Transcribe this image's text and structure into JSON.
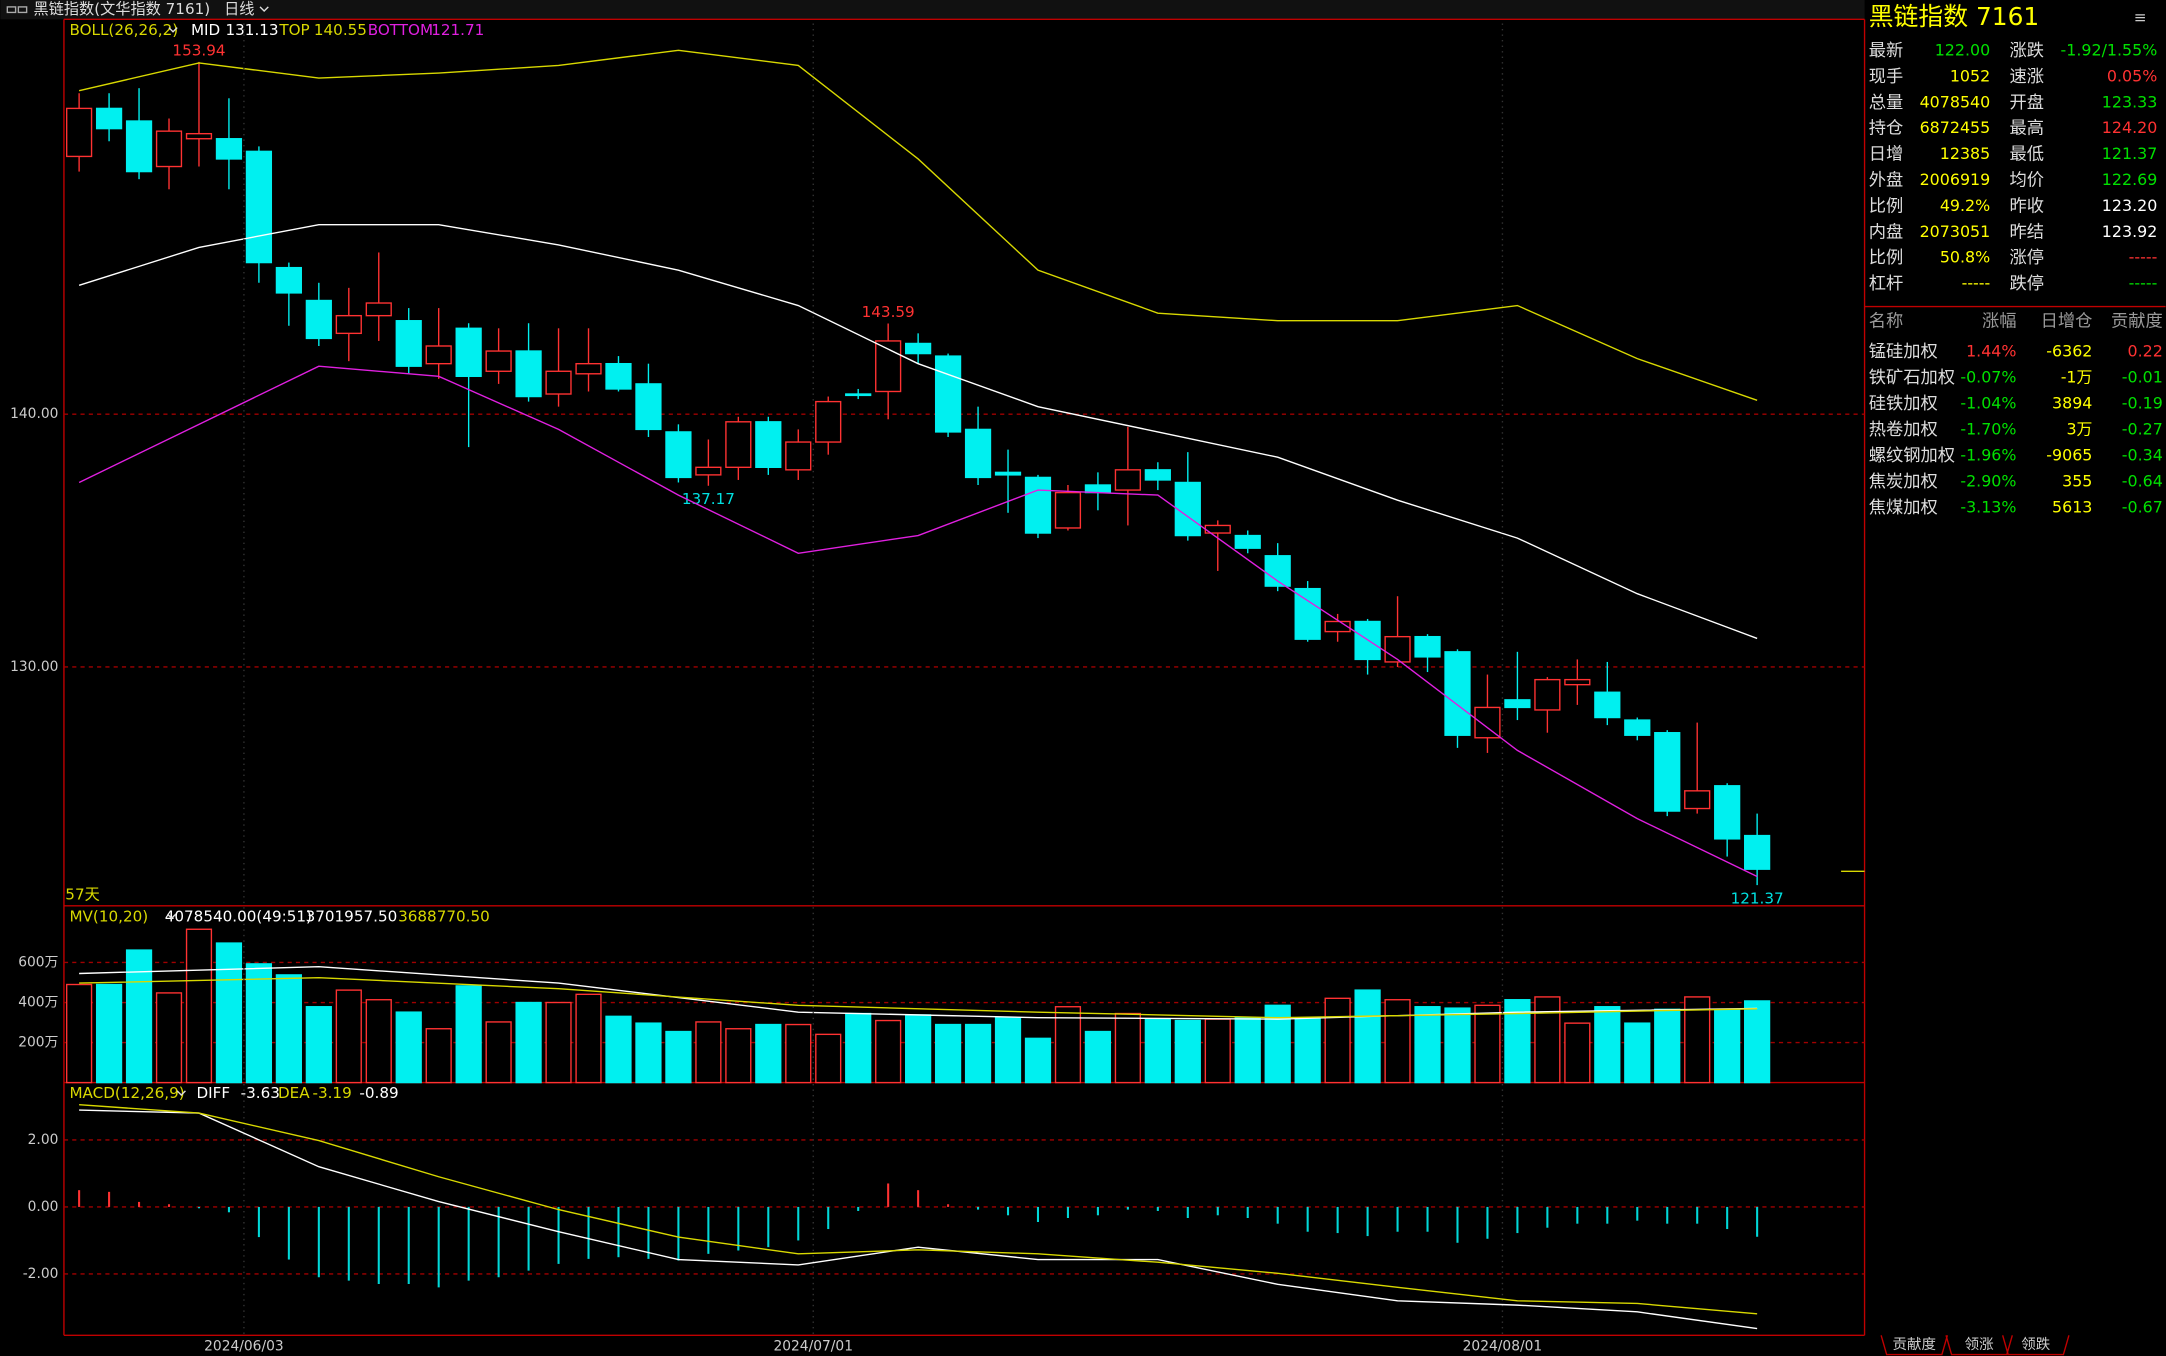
{
  "window_title": "黑链指数(文华指数 7161)",
  "period": "日线",
  "count_label": "57天",
  "chart_data": [
    {
      "type": "candlestick",
      "title": "BOLL(26,26,2)",
      "up_color": "#ff3232",
      "down_color": "#00f0f0",
      "open": [
        150.2,
        152.1,
        151.6,
        149.8,
        150.9,
        150.9,
        150.4,
        145.8,
        144.5,
        143.2,
        143.9,
        143.7,
        142.0,
        143.4,
        141.7,
        142.5,
        140.8,
        141.6,
        142.0,
        141.2,
        139.3,
        137.6,
        137.9,
        139.7,
        137.8,
        138.9,
        140.8,
        140.9,
        142.8,
        142.3,
        139.4,
        137.7,
        137.5,
        135.5,
        137.2,
        137.0,
        137.8,
        137.3,
        135.3,
        135.2,
        134.4,
        133.1,
        131.4,
        131.8,
        130.2,
        131.2,
        130.6,
        127.2,
        128.7,
        128.3,
        129.3,
        129.0,
        127.9,
        127.4,
        124.4,
        125.3,
        123.33
      ],
      "high": [
        152.7,
        152.7,
        152.9,
        151.7,
        153.94,
        152.5,
        150.6,
        146.0,
        145.2,
        145.0,
        146.4,
        144.2,
        144.2,
        143.6,
        143.4,
        143.6,
        143.4,
        143.4,
        142.3,
        142.0,
        139.6,
        139.0,
        139.9,
        139.9,
        139.4,
        140.7,
        141.0,
        143.59,
        143.2,
        142.4,
        140.3,
        138.6,
        137.6,
        137.2,
        137.7,
        139.5,
        138.1,
        138.5,
        135.8,
        135.4,
        134.9,
        133.4,
        132.1,
        131.9,
        132.8,
        131.3,
        130.7,
        129.7,
        130.6,
        129.6,
        130.3,
        130.2,
        128.0,
        127.5,
        127.8,
        125.4,
        124.2
      ],
      "low": [
        149.6,
        150.8,
        149.3,
        148.9,
        149.8,
        148.9,
        145.2,
        143.5,
        142.7,
        142.1,
        142.9,
        141.6,
        141.4,
        138.7,
        141.2,
        140.5,
        140.3,
        140.9,
        140.9,
        139.1,
        137.3,
        137.17,
        137.4,
        137.6,
        137.4,
        138.4,
        140.6,
        139.8,
        142.0,
        139.1,
        137.2,
        136.1,
        135.1,
        135.4,
        136.2,
        135.6,
        137.0,
        135.0,
        133.8,
        134.5,
        133.0,
        131.0,
        131.0,
        129.7,
        130.0,
        129.8,
        126.8,
        126.6,
        127.9,
        127.4,
        128.5,
        127.7,
        127.1,
        124.1,
        124.2,
        122.5,
        121.37
      ],
      "close": [
        152.1,
        151.3,
        149.6,
        151.2,
        151.1,
        150.1,
        146.0,
        144.8,
        143.0,
        143.9,
        144.4,
        141.9,
        142.7,
        141.5,
        142.5,
        140.7,
        141.7,
        142.0,
        141.0,
        139.4,
        137.5,
        137.9,
        139.7,
        137.9,
        138.9,
        140.5,
        140.8,
        142.9,
        142.4,
        139.3,
        137.5,
        137.6,
        135.3,
        136.9,
        136.9,
        137.8,
        137.4,
        135.2,
        135.6,
        134.7,
        133.2,
        131.1,
        131.8,
        130.3,
        131.2,
        130.4,
        127.3,
        128.4,
        128.4,
        129.5,
        129.5,
        128.0,
        127.3,
        124.3,
        125.1,
        123.2,
        122.0
      ],
      "ylim": [
        120.55,
        155.46
      ],
      "yticks": [
        {
          "value": 140,
          "label": "140.00"
        },
        {
          "value": 130,
          "label": "130.00"
        }
      ],
      "series": [
        {
          "name": "MID",
          "color": "#ffffff",
          "x": [
            0,
            4,
            8,
            12,
            16,
            20,
            24,
            28,
            32,
            36,
            40,
            44,
            48,
            52,
            56
          ],
          "values": [
            145.1,
            146.6,
            147.5,
            147.5,
            146.7,
            145.7,
            144.3,
            142.0,
            140.3,
            139.3,
            138.3,
            136.6,
            135.1,
            132.9,
            131.13
          ]
        },
        {
          "name": "TOP",
          "color": "#d8d800",
          "x": [
            0,
            4,
            8,
            12,
            16,
            20,
            24,
            28,
            32,
            36,
            40,
            44,
            48,
            52,
            56
          ],
          "values": [
            152.8,
            153.9,
            153.3,
            153.5,
            153.8,
            154.4,
            153.8,
            150.1,
            145.7,
            144.0,
            143.7,
            143.7,
            144.3,
            142.2,
            140.55
          ]
        },
        {
          "name": "BOTTOM",
          "color": "#e020e0",
          "x": [
            0,
            4,
            8,
            12,
            16,
            20,
            24,
            28,
            32,
            36,
            40,
            44,
            48,
            52,
            56
          ],
          "values": [
            137.3,
            139.6,
            141.9,
            141.5,
            139.4,
            136.8,
            134.5,
            135.2,
            137.0,
            136.8,
            133.4,
            130.3,
            126.7,
            124.0,
            121.71
          ]
        }
      ],
      "annotations": [
        {
          "x": 4,
          "value": 153.94,
          "color": "#ff3232",
          "side": "high"
        },
        {
          "x": 21,
          "value": 137.17,
          "color": "#00e0e0",
          "side": "low"
        },
        {
          "x": 27,
          "value": 143.59,
          "color": "#ff3232",
          "side": "high"
        },
        {
          "x": 56,
          "value": 121.37,
          "color": "#00e0e0",
          "side": "low"
        }
      ]
    },
    {
      "type": "bar",
      "title": "MV(10,20)",
      "subtitle": "4078540.00(49:51)",
      "values": [
        4900000,
        4900000,
        6620000,
        4480000,
        7660000,
        6970000,
        5930000,
        5380000,
        3790000,
        4620000,
        4140000,
        3520000,
        2690000,
        4830000,
        3030000,
        4000000,
        4000000,
        4410000,
        3310000,
        2970000,
        2550000,
        3030000,
        2690000,
        2900000,
        2900000,
        2410000,
        3450000,
        3100000,
        3380000,
        2900000,
        2900000,
        3240000,
        2210000,
        3790000,
        2550000,
        3450000,
        3170000,
        3100000,
        3170000,
        3240000,
        3860000,
        3240000,
        4210000,
        4620000,
        4140000,
        3790000,
        3720000,
        3860000,
        4140000,
        4280000,
        2970000,
        3790000,
        2970000,
        3660000,
        4280000,
        3660000,
        4078540
      ],
      "ylim": [
        0,
        8830000
      ],
      "yticks": [
        {
          "value": 2000000,
          "label": "200万"
        },
        {
          "value": 4000000,
          "label": "400万"
        },
        {
          "value": 6000000,
          "label": "600万"
        }
      ],
      "series": [
        {
          "name": "MV10",
          "color": "#ffffff",
          "x": [
            0,
            8,
            16,
            24,
            32,
            40,
            48,
            56
          ],
          "values": [
            5450000,
            5790000,
            4970000,
            3520000,
            3240000,
            3170000,
            3520000,
            3701957.5
          ],
          "value_label": "3701957.50"
        },
        {
          "name": "MV20",
          "color": "#d8d800",
          "x": [
            0,
            8,
            16,
            24,
            32,
            40,
            48,
            56
          ],
          "values": [
            4970000,
            5240000,
            4690000,
            3860000,
            3520000,
            3240000,
            3450000,
            3688770.5
          ],
          "value_label": "3688770.50"
        }
      ]
    },
    {
      "type": "bar",
      "title": "MACD(12,26,9)",
      "categories": [
        null,
        null,
        null,
        null,
        null,
        "2024/06/03",
        null,
        null,
        null,
        null,
        null,
        null,
        null,
        null,
        null,
        null,
        null,
        null,
        null,
        null,
        null,
        null,
        null,
        null,
        "2024/07/01",
        null,
        null,
        null,
        null,
        null,
        null,
        null,
        null,
        null,
        null,
        null,
        null,
        null,
        null,
        null,
        null,
        null,
        null,
        null,
        null,
        null,
        null,
        "2024/08/01",
        null,
        null,
        null,
        null,
        null,
        null,
        null,
        null,
        null
      ],
      "values": [
        0.5,
        0.45,
        0.15,
        0.08,
        -0.04,
        -0.16,
        -0.9,
        -1.57,
        -2.1,
        -2.2,
        -2.3,
        -2.3,
        -2.4,
        -2.2,
        -2.1,
        -1.9,
        -1.7,
        -1.55,
        -1.5,
        -1.55,
        -1.6,
        -1.4,
        -1.3,
        -1.2,
        -1.0,
        -0.66,
        -0.12,
        0.7,
        0.5,
        0.08,
        -0.08,
        -0.25,
        -0.45,
        -0.33,
        -0.25,
        -0.08,
        -0.12,
        -0.33,
        -0.25,
        -0.33,
        -0.5,
        -0.74,
        -0.78,
        -0.87,
        -0.74,
        -0.74,
        -1.07,
        -0.95,
        -0.78,
        -0.62,
        -0.5,
        -0.5,
        -0.41,
        -0.5,
        -0.5,
        -0.66,
        -0.89
      ],
      "up_color": "#ff3232",
      "down_color": "#00d8d8",
      "ylim": [
        -3.83,
        3.71
      ],
      "yticks": [
        {
          "value": 2,
          "label": "2.00"
        },
        {
          "value": 0,
          "label": "0.00"
        },
        {
          "value": -2,
          "label": "-2.00"
        }
      ],
      "series": [
        {
          "name": "DIFF",
          "color": "#ffffff",
          "x": [
            0,
            4,
            8,
            12,
            16,
            20,
            24,
            28,
            32,
            36,
            40,
            44,
            48,
            52,
            56
          ],
          "values": [
            2.89,
            2.8,
            1.2,
            0.16,
            -0.74,
            -1.57,
            -1.73,
            -1.2,
            -1.57,
            -1.57,
            -2.31,
            -2.8,
            -2.93,
            -3.13,
            -3.63
          ]
        },
        {
          "name": "DEA",
          "color": "#d8d800",
          "x": [
            0,
            4,
            8,
            12,
            16,
            20,
            24,
            28,
            32,
            36,
            40,
            44,
            48,
            52,
            56
          ],
          "values": [
            3.05,
            2.8,
            1.98,
            0.9,
            -0.08,
            -0.9,
            -1.4,
            -1.28,
            -1.4,
            -1.65,
            -1.98,
            -2.4,
            -2.8,
            -2.88,
            -3.19
          ]
        }
      ]
    }
  ],
  "quote_panel": {
    "title": "黑链指数  7161",
    "rows": [
      [
        {
          "label": "最新",
          "value": "122.00",
          "color": "#00e000"
        },
        {
          "label": "涨跌",
          "value": "-1.92/1.55%",
          "color": "#00e000"
        }
      ],
      [
        {
          "label": "现手",
          "value": "1052",
          "color": "#ffff00"
        },
        {
          "label": "速涨",
          "value": "0.05%",
          "color": "#ff3232"
        }
      ],
      [
        {
          "label": "总量",
          "value": "4078540",
          "color": "#ffff00"
        },
        {
          "label": "开盘",
          "value": "123.33",
          "color": "#00e000"
        }
      ],
      [
        {
          "label": "持仓",
          "value": "6872455",
          "color": "#ffff00"
        },
        {
          "label": "最高",
          "value": "124.20",
          "color": "#ff3232"
        }
      ],
      [
        {
          "label": "日增",
          "value": "12385",
          "color": "#ffff00"
        },
        {
          "label": "最低",
          "value": "121.37",
          "color": "#00e000"
        }
      ],
      [
        {
          "label": "外盘",
          "value": "2006919",
          "color": "#ffff00"
        },
        {
          "label": "均价",
          "value": "122.69",
          "color": "#00e000"
        }
      ],
      [
        {
          "label": "比例",
          "value": "49.2%",
          "color": "#ffff00"
        },
        {
          "label": "昨收",
          "value": "123.20",
          "color": "#ffffff"
        }
      ],
      [
        {
          "label": "内盘",
          "value": "2073051",
          "color": "#ffff00"
        },
        {
          "label": "昨结",
          "value": "123.92",
          "color": "#ffffff"
        }
      ],
      [
        {
          "label": "比例",
          "value": "50.8%",
          "color": "#ffff00"
        },
        {
          "label": "涨停",
          "value": "-----",
          "color": "#ff3232"
        }
      ],
      [
        {
          "label": "杠杆",
          "value": "-----",
          "color": "#ffff00"
        },
        {
          "label": "跌停",
          "value": "-----",
          "color": "#00e000"
        }
      ]
    ]
  },
  "components": {
    "header": [
      "名称",
      "涨幅",
      "日增仓",
      "贡献度"
    ],
    "rows": [
      {
        "cells": [
          "锰硅加权",
          "1.44%",
          "-6362",
          "0.22"
        ],
        "color": "#ff3232"
      },
      {
        "cells": [
          "铁矿石加权",
          "-0.07%",
          "-1万",
          "-0.01"
        ],
        "color": "#00e000"
      },
      {
        "cells": [
          "硅铁加权",
          "-1.04%",
          "3894",
          "-0.19"
        ],
        "color": "#00e000"
      },
      {
        "cells": [
          "热卷加权",
          "-1.70%",
          "3万",
          "-0.27"
        ],
        "color": "#00e000"
      },
      {
        "cells": [
          "螺纹钢加权",
          "-1.96%",
          "-9065",
          "-0.34"
        ],
        "color": "#00e000"
      },
      {
        "cells": [
          "焦炭加权",
          "-2.90%",
          "355",
          "-0.64"
        ],
        "color": "#00e000"
      },
      {
        "cells": [
          "焦煤加权",
          "-3.13%",
          "5613",
          "-0.67"
        ],
        "color": "#00e000"
      }
    ]
  },
  "tabs": [
    "贡献度",
    "领涨",
    "领跌"
  ]
}
